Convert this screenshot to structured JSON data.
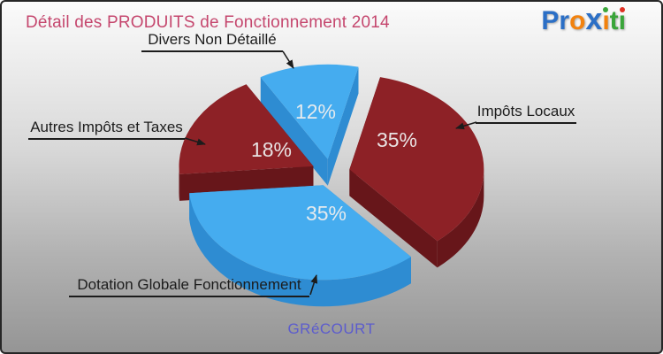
{
  "header": {
    "logo": {
      "text": "Proxiti",
      "letters": [
        {
          "ch": "P",
          "color": "#2b6fc6"
        },
        {
          "ch": "r",
          "color": "#2b6fc6"
        },
        {
          "ch": "o",
          "color": "#f2820e"
        },
        {
          "ch": "x",
          "color": "#2b6fc6",
          "big": true
        },
        {
          "ch": "ı",
          "color": "#f2820e",
          "dot": "#3aa53a"
        },
        {
          "ch": "t",
          "color": "#3aa53a"
        },
        {
          "ch": "ı",
          "color": "#3aa53a",
          "dot": "#e03023"
        }
      ]
    }
  },
  "chart_data": {
    "type": "pie",
    "title": "Détail des PRODUITS de Fonctionnement 2014",
    "footer": "GRéCOURT",
    "unit": "%",
    "style": "3d-exploded",
    "direction": "clockwise",
    "start_angle_deg": -30,
    "labels_show_percent": true,
    "percent_label_color": "#eeeeee",
    "slices": [
      {
        "label": "Divers Non Détaillé",
        "value_pct": 12,
        "color": "#45acef",
        "side_color": "#2e8cd2"
      },
      {
        "label": "Impôts Locaux",
        "value_pct": 35,
        "color": "#8d2126",
        "side_color": "#67161a"
      },
      {
        "label": "Dotation Globale Fonctionnement",
        "value_pct": 35,
        "color": "#45acef",
        "side_color": "#2e8cd2"
      },
      {
        "label": "Autres Impôts et Taxes",
        "value_pct": 18,
        "color": "#8d2126",
        "side_color": "#67161a"
      }
    ]
  },
  "colors": {
    "background_top": "#fbfbfb",
    "background_bottom": "#959595",
    "title_text": "#c5476e",
    "callout_text": "#1c1c1c",
    "footer_text": "#5c5ccd"
  }
}
